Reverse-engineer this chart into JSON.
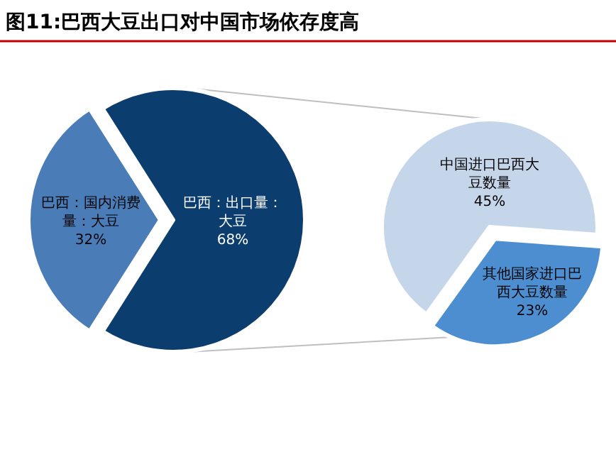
{
  "chart_data": [
    {
      "type": "pie",
      "title": "图11:巴西大豆出口对中国市场依存度高",
      "categories": [
        "巴西：国内消费量：大豆",
        "巴西：出口量：大豆"
      ],
      "values": [
        32,
        68
      ],
      "colors": [
        "#4a7cb8",
        "#0c3d6f"
      ],
      "value_labels": [
        "32%",
        "68%"
      ]
    },
    {
      "type": "pie",
      "categories": [
        "中国进口巴西大豆数量",
        "其他国家进口巴西大豆数量"
      ],
      "values": [
        45,
        23
      ],
      "colors": [
        "#c6d6ea",
        "#4d8ed0"
      ],
      "value_labels": [
        "45%",
        "23%"
      ]
    }
  ]
}
